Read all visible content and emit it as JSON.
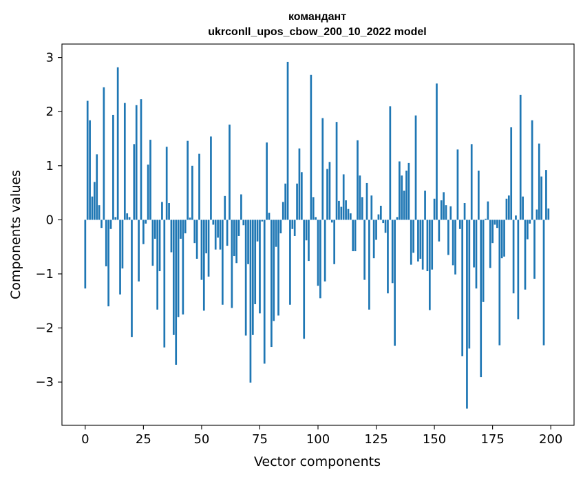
{
  "chart_data": {
    "type": "bar",
    "title": [
      "командант",
      "ukrconll_upos_cbow_200_10_2022 model"
    ],
    "xlabel": "Vector components",
    "ylabel": "Components values",
    "xlim": [
      -10,
      210
    ],
    "ylim": [
      -3.8,
      3.25
    ],
    "xticks": [
      0,
      25,
      50,
      75,
      100,
      125,
      150,
      175,
      200
    ],
    "xtick_labels": [
      "0",
      "25",
      "50",
      "75",
      "100",
      "125",
      "150",
      "175",
      "200"
    ],
    "yticks": [
      -3,
      -2,
      -1,
      0,
      1,
      2,
      3
    ],
    "ytick_labels": [
      "−3",
      "−2",
      "−1",
      "0",
      "1",
      "2",
      "3"
    ],
    "bar_color": "#1f77b4",
    "grid": false,
    "x": [
      0,
      1,
      2,
      3,
      4,
      5,
      6,
      7,
      8,
      9,
      10,
      11,
      12,
      13,
      14,
      15,
      16,
      17,
      18,
      19,
      20,
      21,
      22,
      23,
      24,
      25,
      26,
      27,
      28,
      29,
      30,
      31,
      32,
      33,
      34,
      35,
      36,
      37,
      38,
      39,
      40,
      41,
      42,
      43,
      44,
      45,
      46,
      47,
      48,
      49,
      50,
      51,
      52,
      53,
      54,
      55,
      56,
      57,
      58,
      59,
      60,
      61,
      62,
      63,
      64,
      65,
      66,
      67,
      68,
      69,
      70,
      71,
      72,
      73,
      74,
      75,
      76,
      77,
      78,
      79,
      80,
      81,
      82,
      83,
      84,
      85,
      86,
      87,
      88,
      89,
      90,
      91,
      92,
      93,
      94,
      95,
      96,
      97,
      98,
      99,
      100,
      101,
      102,
      103,
      104,
      105,
      106,
      107,
      108,
      109,
      110,
      111,
      112,
      113,
      114,
      115,
      116,
      117,
      118,
      119,
      120,
      121,
      122,
      123,
      124,
      125,
      126,
      127,
      128,
      129,
      130,
      131,
      132,
      133,
      134,
      135,
      136,
      137,
      138,
      139,
      140,
      141,
      142,
      143,
      144,
      145,
      146,
      147,
      148,
      149,
      150,
      151,
      152,
      153,
      154,
      155,
      156,
      157,
      158,
      159,
      160,
      161,
      162,
      163,
      164,
      165,
      166,
      167,
      168,
      169,
      170,
      171,
      172,
      173,
      174,
      175,
      176,
      177,
      178,
      179,
      180,
      181,
      182,
      183,
      184,
      185,
      186,
      187,
      188,
      189,
      190,
      191,
      192,
      193,
      194,
      195,
      196,
      197,
      198,
      199
    ],
    "values": [
      -1.27,
      2.2,
      1.84,
      0.43,
      0.7,
      1.21,
      0.27,
      -0.15,
      2.45,
      -0.86,
      -1.6,
      -0.17,
      1.94,
      0.05,
      2.82,
      -1.38,
      -0.9,
      2.16,
      0.12,
      0.05,
      -2.17,
      1.4,
      2.12,
      -1.14,
      2.23,
      -0.45,
      -0.07,
      1.02,
      1.48,
      -0.85,
      -0.35,
      -1.66,
      -0.95,
      0.33,
      -2.36,
      1.35,
      0.31,
      -0.6,
      -2.13,
      -2.68,
      -1.8,
      -0.35,
      -1.75,
      -0.25,
      1.46,
      0.04,
      1.0,
      -0.43,
      -0.72,
      1.22,
      -1.11,
      -1.68,
      -0.62,
      -1.05,
      1.54,
      -0.09,
      -0.55,
      -0.33,
      -0.55,
      -1.57,
      0.44,
      -0.48,
      1.76,
      -1.63,
      -0.67,
      -0.8,
      -0.3,
      0.47,
      -0.1,
      -2.14,
      -0.82,
      -3.01,
      -2.13,
      -1.56,
      -0.4,
      -1.73,
      -0.03,
      -2.66,
      1.43,
      0.13,
      -2.35,
      -1.87,
      -0.5,
      -1.77,
      -0.25,
      0.33,
      0.67,
      2.92,
      -1.57,
      -0.17,
      -0.3,
      0.67,
      1.32,
      0.88,
      -2.2,
      -0.38,
      -0.76,
      2.68,
      0.42,
      0.05,
      -1.22,
      -1.45,
      1.88,
      -1.14,
      0.94,
      1.07,
      -0.05,
      -0.82,
      1.81,
      0.35,
      0.24,
      0.84,
      0.36,
      0.2,
      0.12,
      -0.58,
      -0.58,
      1.47,
      0.82,
      0.42,
      -1.11,
      0.68,
      -1.66,
      0.45,
      -0.71,
      -0.37,
      0.1,
      0.26,
      -0.06,
      -0.24,
      -1.36,
      2.1,
      -1.17,
      -2.33,
      0.05,
      1.08,
      0.82,
      0.54,
      0.91,
      1.05,
      -0.83,
      -0.61,
      1.93,
      -0.77,
      -0.72,
      -0.92,
      0.54,
      -0.95,
      -1.67,
      -0.92,
      0.39,
      2.52,
      -0.4,
      0.36,
      0.51,
      0.27,
      -0.65,
      0.25,
      -0.84,
      -1.01,
      1.3,
      -0.17,
      -2.52,
      0.31,
      -3.49,
      -2.38,
      1.4,
      -0.88,
      -1.27,
      0.91,
      -2.91,
      -1.52,
      0.02,
      0.34,
      -0.89,
      -0.43,
      -0.09,
      -0.15,
      -2.32,
      -0.71,
      -0.68,
      0.39,
      0.45,
      1.71,
      -1.36,
      0.08,
      -1.84,
      2.31,
      0.43,
      -1.29,
      -0.36,
      -0.07,
      1.84,
      -1.09,
      0.19,
      1.41,
      0.8,
      -2.32,
      0.92,
      0.21
    ]
  }
}
